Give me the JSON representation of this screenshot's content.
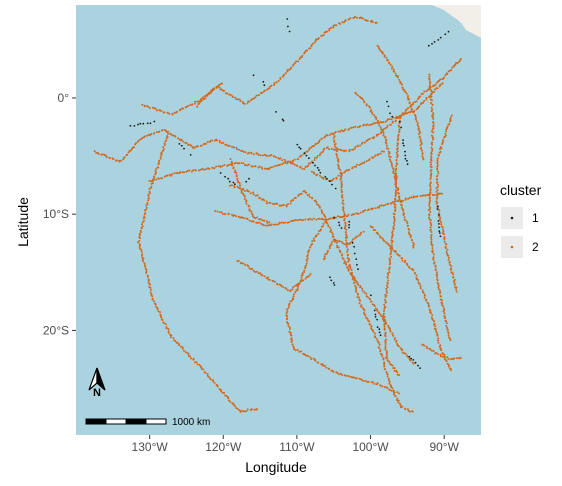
{
  "chart_data": {
    "type": "scatter",
    "title": "",
    "xlabel": "Longitude",
    "ylabel": "Latitude",
    "xlim": [
      -140,
      -85
    ],
    "ylim": [
      -29,
      8
    ],
    "x_ticks": [
      {
        "value": -130,
        "label": "130°W"
      },
      {
        "value": -120,
        "label": "120°W"
      },
      {
        "value": -110,
        "label": "110°W"
      },
      {
        "value": -100,
        "label": "100°W"
      },
      {
        "value": -90,
        "label": "90°W"
      }
    ],
    "y_ticks": [
      {
        "value": 0,
        "label": "0°"
      },
      {
        "value": -10,
        "label": "10°S"
      },
      {
        "value": -20,
        "label": "20°S"
      }
    ],
    "grid": false,
    "legend": {
      "title": "cluster",
      "position": "right",
      "entries": [
        "1",
        "2"
      ]
    },
    "colors": {
      "ocean": "#aad3df",
      "land": "#f2efe9",
      "cluster_1": "#1a1a1a",
      "cluster_2": "#d2691e"
    },
    "scale_bar": {
      "label": "1000 km"
    },
    "north_arrow": {
      "label": "N"
    },
    "series": [
      {
        "name": "2",
        "tracks": [
          [
            [
              -137.5,
              -4.6
            ],
            [
              -134,
              -5.5
            ],
            [
              -131,
              -3.4
            ],
            [
              -128,
              -2.7
            ],
            [
              -124,
              -4.3
            ],
            [
              -121,
              -3.6
            ],
            [
              -117,
              -4.7
            ],
            [
              -113,
              -5.0
            ],
            [
              -109,
              -6.1
            ],
            [
              -106,
              -4.3
            ],
            [
              -103,
              -4.6
            ],
            [
              -99,
              -3.2
            ],
            [
              -96,
              -1.6
            ],
            [
              -93,
              0.3
            ],
            [
              -90,
              1.8
            ],
            [
              -87.5,
              3.5
            ]
          ],
          [
            [
              -127.5,
              -3.1
            ],
            [
              -130,
              -8.0
            ],
            [
              -131.5,
              -12.4
            ],
            [
              -129.5,
              -17.4
            ],
            [
              -127,
              -20.6
            ],
            [
              -123,
              -23.2
            ],
            [
              -120.4,
              -25.1
            ],
            [
              -117.7,
              -27.0
            ],
            [
              -115.2,
              -26.7
            ]
          ],
          [
            [
              -123.6,
              -0.7
            ],
            [
              -121,
              1.0
            ],
            [
              -117,
              -0.5
            ],
            [
              -113,
              1.2
            ],
            [
              -110,
              3.1
            ],
            [
              -107.5,
              4.9
            ],
            [
              -105,
              6.2
            ],
            [
              -102,
              7.0
            ],
            [
              -99,
              6.4
            ]
          ],
          [
            [
              -130,
              -7.2
            ],
            [
              -126,
              -6.4
            ],
            [
              -122,
              -6.1
            ],
            [
              -118,
              -5.6
            ],
            [
              -114,
              -6.1
            ],
            [
              -110,
              -5.3
            ],
            [
              -106,
              -3.2
            ],
            [
              -102,
              -2.5
            ],
            [
              -98,
              -2.0
            ],
            [
              -94,
              -1.1
            ],
            [
              -90,
              1.4
            ]
          ],
          [
            [
              -119,
              -7.5
            ],
            [
              -116,
              -8.2
            ],
            [
              -114,
              -9.0
            ],
            [
              -111.5,
              -9.3
            ],
            [
              -109,
              -8.0
            ],
            [
              -107,
              -9.2
            ],
            [
              -105,
              -12.0
            ],
            [
              -103,
              -14.8
            ],
            [
              -100.5,
              -17.0
            ],
            [
              -98,
              -19.2
            ],
            [
              -96,
              -21.5
            ],
            [
              -94,
              -23.0
            ]
          ],
          [
            [
              -131,
              -0.6
            ],
            [
              -127,
              -1.4
            ],
            [
              -123.5,
              -0.3
            ],
            [
              -120,
              1.3
            ]
          ],
          [
            [
              -105,
              -3.2
            ],
            [
              -104,
              -7.0
            ],
            [
              -103.5,
              -10.5
            ],
            [
              -103,
              -14.0
            ],
            [
              -101.5,
              -17.5
            ],
            [
              -99,
              -21.0
            ],
            [
              -97.5,
              -24.4
            ],
            [
              -96,
              -26.5
            ],
            [
              -94,
              -27.1
            ]
          ],
          [
            [
              -96,
              -1.5
            ],
            [
              -96.5,
              -6.0
            ],
            [
              -96.8,
              -10.5
            ],
            [
              -97.5,
              -14.8
            ],
            [
              -98.2,
              -18.5
            ],
            [
              -97.8,
              -22.5
            ],
            [
              -96,
              -24.0
            ]
          ],
          [
            [
              -92,
              2.0
            ],
            [
              -91.5,
              -2.0
            ],
            [
              -91.8,
              -6.0
            ],
            [
              -92,
              -10.0
            ],
            [
              -91.5,
              -13.5
            ],
            [
              -90.5,
              -17.0
            ],
            [
              -89.2,
              -21.0
            ]
          ],
          [
            [
              -89,
              -1.5
            ],
            [
              -90.8,
              -5.0
            ],
            [
              -91,
              -9.0
            ],
            [
              -89.6,
              -13.2
            ],
            [
              -88.2,
              -16.8
            ]
          ],
          [
            [
              -100,
              -11.0
            ],
            [
              -97,
              -13.0
            ],
            [
              -94,
              -15.0
            ],
            [
              -92,
              -18.0
            ],
            [
              -90.5,
              -21.5
            ],
            [
              -89,
              -23.6
            ]
          ],
          [
            [
              -106,
              -10.5
            ],
            [
              -108,
              -12.5
            ],
            [
              -109.5,
              -15.8
            ],
            [
              -111.5,
              -18.5
            ],
            [
              -110.5,
              -21.5
            ],
            [
              -108,
              -22.4
            ],
            [
              -105,
              -23.6
            ],
            [
              -102,
              -24.1
            ],
            [
              -99,
              -24.6
            ],
            [
              -96,
              -25.5
            ]
          ],
          [
            [
              -118,
              -14.0
            ],
            [
              -114,
              -15.5
            ],
            [
              -111,
              -16.6
            ],
            [
              -108,
              -15.1
            ]
          ],
          [
            [
              -101,
              -11.5
            ],
            [
              -103,
              -12.6
            ],
            [
              -105,
              -12.2
            ],
            [
              -106.5,
              -14.0
            ]
          ],
          [
            [
              -93,
              -21.2
            ],
            [
              -91,
              -22.0
            ],
            [
              -89,
              -22.5
            ],
            [
              -87.5,
              -22.3
            ]
          ],
          [
            [
              -121,
              -9.8
            ],
            [
              -118,
              -10.2
            ],
            [
              -114,
              -11.0
            ],
            [
              -110,
              -10.5
            ],
            [
              -106,
              -10.4
            ],
            [
              -102,
              -10.0
            ],
            [
              -98,
              -9.2
            ],
            [
              -94,
              -8.5
            ],
            [
              -90,
              -8.2
            ]
          ],
          [
            [
              -102,
              0.5
            ],
            [
              -100,
              -1.0
            ],
            [
              -98.2,
              -3.0
            ],
            [
              -97,
              -6.0
            ],
            [
              -95.5,
              -10.0
            ],
            [
              -94,
              -13.0
            ]
          ],
          [
            [
              -99,
              4.5
            ],
            [
              -97,
              2.6
            ],
            [
              -95,
              0.2
            ],
            [
              -93.5,
              -2.4
            ],
            [
              -92.8,
              -5.4
            ]
          ],
          [
            [
              -119,
              -5.3
            ],
            [
              -117.5,
              -8.0
            ],
            [
              -116,
              -10.2
            ],
            [
              -113.5,
              -10.8
            ]
          ],
          [
            [
              -108,
              -6.4
            ],
            [
              -105.5,
              -7.2
            ],
            [
              -103,
              -6.2
            ],
            [
              -100.5,
              -5.4
            ],
            [
              -98,
              -4.5
            ]
          ]
        ]
      },
      {
        "name": "1",
        "tracks": [
          [
            [
              -111.5,
              7.0
            ],
            [
              -111,
              5.4
            ]
          ],
          [
            [
              -133,
              -2.5
            ],
            [
              -129,
              -2.0
            ]
          ],
          [
            [
              -121,
              -6.2
            ],
            [
              -118,
              -7.6
            ],
            [
              -115,
              -6.4
            ]
          ],
          [
            [
              -110,
              -4.0
            ],
            [
              -107,
              -6.2
            ],
            [
              -104.5,
              -8.0
            ]
          ],
          [
            [
              -105,
              -10.0
            ],
            [
              -103.8,
              -11.5
            ]
          ],
          [
            [
              -103,
              -10.6
            ],
            [
              -101.5,
              -15.5
            ]
          ],
          [
            [
              -96,
              -2.0
            ],
            [
              -95,
              -6.0
            ]
          ],
          [
            [
              -92,
              4.5
            ],
            [
              -89,
              5.8
            ]
          ],
          [
            [
              -116,
              2.0
            ],
            [
              -114,
              1.0
            ]
          ],
          [
            [
              -100,
              -17.0
            ],
            [
              -98.5,
              -21.0
            ]
          ],
          [
            [
              -95,
              -22.0
            ],
            [
              -93,
              -23.4
            ]
          ],
          [
            [
              -126,
              -4.0
            ],
            [
              -124,
              -5.0
            ]
          ],
          [
            [
              -113,
              -1.0
            ],
            [
              -111.5,
              -2.2
            ]
          ],
          [
            [
              -91,
              -9.0
            ],
            [
              -90.4,
              -12.2
            ]
          ],
          [
            [
              -106,
              -15.0
            ],
            [
              -104.2,
              -16.8
            ]
          ],
          [
            [
              -98,
              0.0
            ],
            [
              -97,
              -1.8
            ]
          ]
        ]
      }
    ]
  }
}
